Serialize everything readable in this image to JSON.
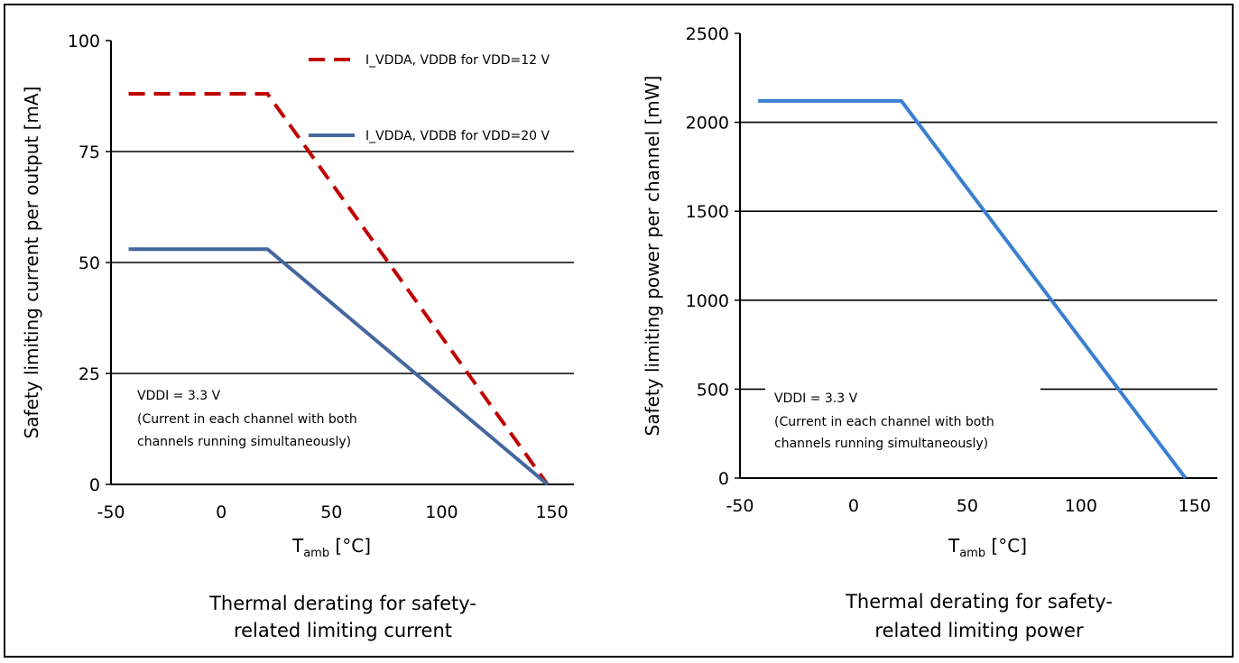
{
  "charts": [
    {
      "id": "left",
      "caption": [
        "Thermal derating for safety-",
        "related limiting current"
      ],
      "note": [
        "VDDI = 3.3 V",
        "(Current in each channel with both",
        "channels running simultaneously)"
      ],
      "chart_data": {
        "type": "line",
        "xlabel_main": "T",
        "xlabel_sub": "amb",
        "xlabel_unit": " [°C]",
        "ylabel": "Safety limiting current per output [mA]",
        "xlim": [
          -50,
          160
        ],
        "ylim": [
          0,
          100
        ],
        "xticks": [
          -50,
          0,
          50,
          100,
          150
        ],
        "yticks": [
          0,
          25,
          50,
          75,
          100
        ],
        "grid": "horizontal",
        "legend": "top-right",
        "series": [
          {
            "name": "I_VDDA, VDDB for VDD=12 V",
            "color": "#c00000",
            "style": "dashed",
            "x": [
              -42,
              21,
              148
            ],
            "y": [
              88,
              88,
              0
            ]
          },
          {
            "name": "I_VDDA, VDDB for VDD=20 V",
            "color": "#44679e",
            "style": "solid",
            "x": [
              -42,
              21,
              148
            ],
            "y": [
              53,
              53,
              0
            ]
          }
        ]
      }
    },
    {
      "id": "right",
      "caption": [
        "Thermal derating for safety-",
        "related limiting power"
      ],
      "note": [
        "VDDI = 3.3 V",
        "(Current in each channel with both",
        "channels running simultaneously)"
      ],
      "chart_data": {
        "type": "line",
        "xlabel_main": "T",
        "xlabel_sub": "amb",
        "xlabel_unit": " [°C]",
        "ylabel": "Safety limiting power per channel [mW]",
        "xlim": [
          -50,
          160
        ],
        "ylim": [
          0,
          2500
        ],
        "xticks": [
          -50,
          0,
          50,
          100,
          150
        ],
        "yticks": [
          0,
          500,
          1000,
          1500,
          2000,
          2500
        ],
        "grid": "horizontal",
        "legend": "none",
        "series": [
          {
            "name": "",
            "color": "#3a7fd0",
            "style": "solid",
            "x": [
              -42,
              21,
              146
            ],
            "y": [
              2120,
              2120,
              0
            ]
          }
        ]
      }
    }
  ]
}
